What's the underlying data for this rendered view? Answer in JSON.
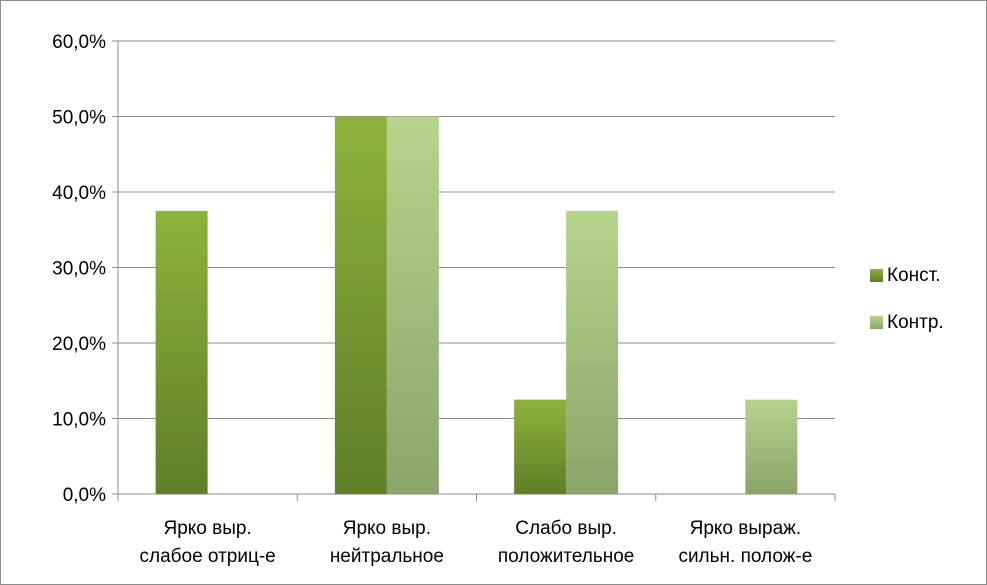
{
  "chart_data": {
    "type": "bar",
    "categories": [
      [
        "Ярко выр.",
        "слабое отриц-е"
      ],
      [
        "Ярко выр.",
        "нейтральное"
      ],
      [
        "Слабо выр.",
        "положительное"
      ],
      [
        "Ярко выраж.",
        "сильн. полож-е"
      ]
    ],
    "series": [
      {
        "name": "Конст.",
        "values": [
          37.5,
          50.0,
          12.5,
          0.0
        ],
        "color_top": "#8db33c",
        "color_bottom": "#5e7f27"
      },
      {
        "name": "Контр.",
        "values": [
          0.0,
          50.0,
          37.5,
          12.5
        ],
        "color_top": "#b6d48c",
        "color_bottom": "#8aa56a"
      }
    ],
    "ylim": [
      0,
      60
    ],
    "yticks": [
      "0,0%",
      "10,0%",
      "20,0%",
      "30,0%",
      "40,0%",
      "50,0%",
      "60,0%"
    ],
    "grid": true,
    "legend_position": "right"
  }
}
